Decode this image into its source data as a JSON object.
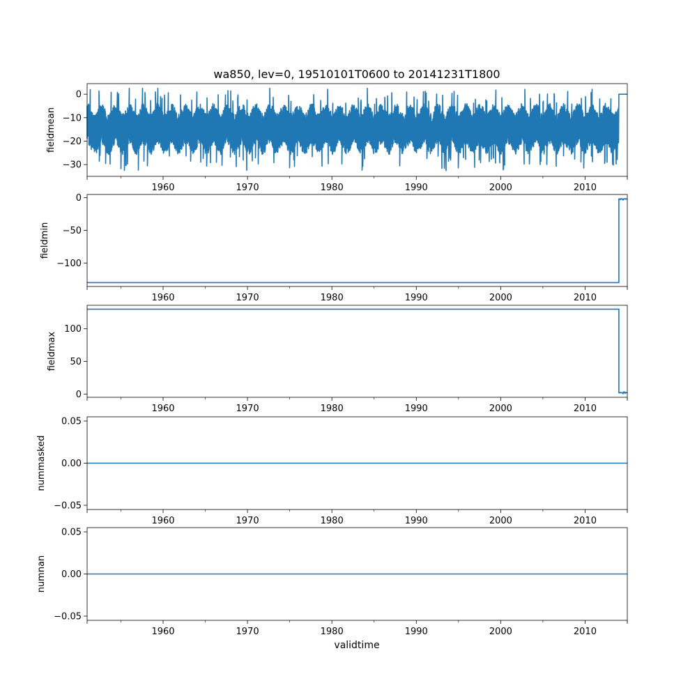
{
  "figure": {
    "title": "wa850, lev=0, 19510101T0600 to 20141231T1800",
    "xlabel": "validtime"
  },
  "chart_data": [
    {
      "type": "line",
      "ylabel": "fieldmean",
      "xlim": [
        1951.0,
        2015.0
      ],
      "ylim": [
        -35,
        4.5
      ],
      "xticks": [
        1960,
        1970,
        1980,
        1990,
        2000,
        2010
      ],
      "xtick_labels": [
        "1960",
        "1970",
        "1980",
        "1990",
        "2000",
        "2010"
      ],
      "yticks": [
        0,
        -10,
        -20,
        -30
      ],
      "ytick_labels": [
        "0",
        "−10",
        "−20",
        "−30"
      ],
      "series": [
        {
          "color": "#1f77b4",
          "style": "dense-noise",
          "x_range": [
            1951.0,
            2014.0
          ],
          "y_range": [
            -34,
            2.5
          ],
          "y_center": -15.5,
          "y_typical_band": [
            -25,
            -5
          ],
          "tail": {
            "x": [
              2014.0,
              2015.0
            ],
            "y": [
              0,
              0
            ]
          }
        }
      ],
      "grid": false,
      "legend": false
    },
    {
      "type": "line",
      "ylabel": "fieldmin",
      "xlim": [
        1951.0,
        2015.0
      ],
      "ylim": [
        -136,
        5
      ],
      "xticks": [
        1960,
        1970,
        1980,
        1990,
        2000,
        2010
      ],
      "xtick_labels": [
        "1960",
        "1970",
        "1980",
        "1990",
        "2000",
        "2010"
      ],
      "yticks": [
        0,
        -50,
        -100
      ],
      "ytick_labels": [
        "0",
        "−50",
        "−100"
      ],
      "series": [
        {
          "color": "#1f77b4",
          "x": [
            1951.0,
            2014.0,
            2014.0,
            2015.0
          ],
          "y": [
            -130,
            -130,
            -2,
            -2
          ]
        }
      ],
      "grid": false,
      "legend": false
    },
    {
      "type": "line",
      "ylabel": "fieldmax",
      "xlim": [
        1951.0,
        2015.0
      ],
      "ylim": [
        -5,
        136
      ],
      "xticks": [
        1960,
        1970,
        1980,
        1990,
        2000,
        2010
      ],
      "xtick_labels": [
        "1960",
        "1970",
        "1980",
        "1990",
        "2000",
        "2010"
      ],
      "yticks": [
        100,
        50,
        0
      ],
      "ytick_labels": [
        "100",
        "50",
        "0"
      ],
      "series": [
        {
          "color": "#1f77b4",
          "x": [
            1951.0,
            2014.0,
            2014.0,
            2015.0
          ],
          "y": [
            130,
            130,
            2,
            2
          ]
        }
      ],
      "grid": false,
      "legend": false
    },
    {
      "type": "line",
      "ylabel": "nummasked",
      "xlim": [
        1951.0,
        2015.0
      ],
      "ylim": [
        -0.055,
        0.055
      ],
      "xticks": [
        1960,
        1970,
        1980,
        1990,
        2000,
        2010
      ],
      "xtick_labels": [
        "1960",
        "1970",
        "1980",
        "1990",
        "2000",
        "2010"
      ],
      "yticks": [
        0.05,
        0.0,
        -0.05
      ],
      "ytick_labels": [
        "0.05",
        "0.00",
        "−0.05"
      ],
      "series": [
        {
          "color": "#1f77b4",
          "x": [
            1951.0,
            2015.0
          ],
          "y": [
            0,
            0
          ]
        }
      ],
      "grid": false,
      "legend": false
    },
    {
      "type": "line",
      "ylabel": "numnan",
      "xlim": [
        1951.0,
        2015.0
      ],
      "ylim": [
        -0.055,
        0.055
      ],
      "xticks": [
        1960,
        1970,
        1980,
        1990,
        2000,
        2010
      ],
      "xtick_labels": [
        "1960",
        "1970",
        "1980",
        "1990",
        "2000",
        "2010"
      ],
      "yticks": [
        0.05,
        0.0,
        -0.05
      ],
      "ytick_labels": [
        "0.05",
        "0.00",
        "−0.05"
      ],
      "series": [
        {
          "color": "#1f77b4",
          "x": [
            1951.0,
            2015.0
          ],
          "y": [
            0,
            0
          ]
        }
      ],
      "grid": false,
      "legend": false
    }
  ]
}
